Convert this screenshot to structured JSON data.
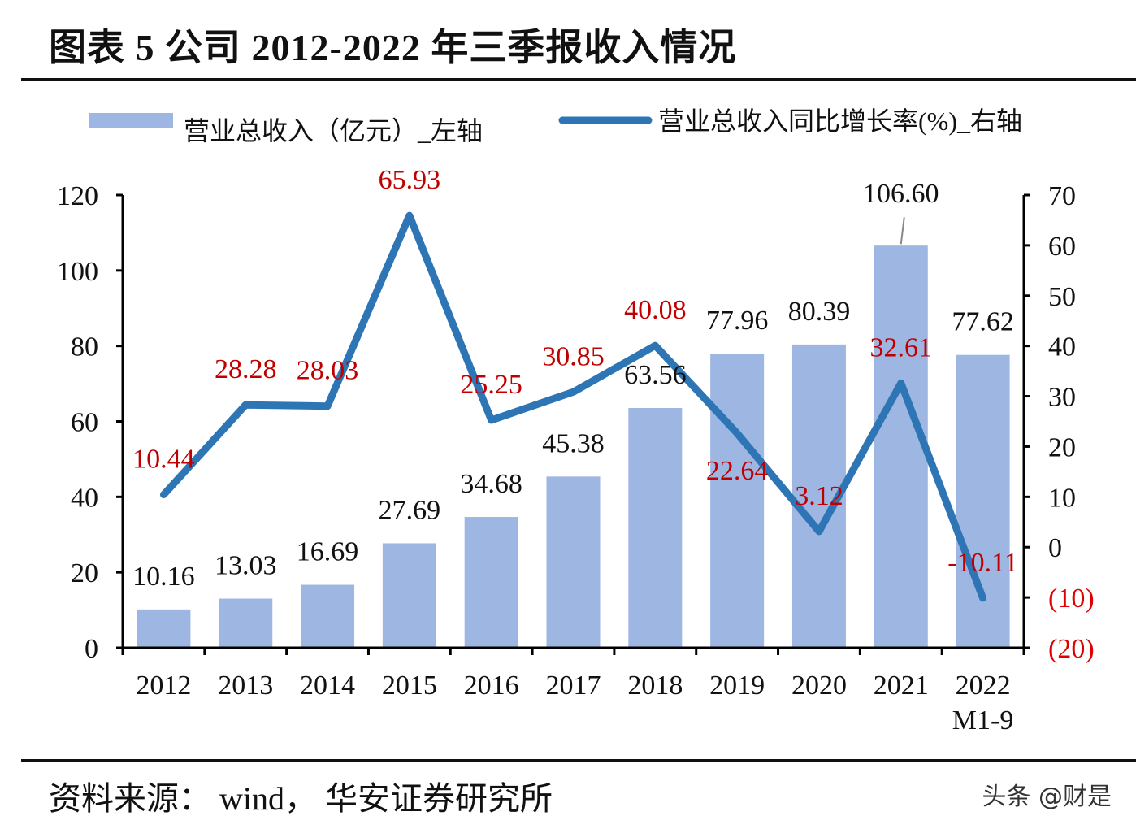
{
  "title": "图表 5 公司 2012-2022 年三季报收入情况",
  "source": "资料来源： wind， 华安证券研究所",
  "watermark": "头条 @财是",
  "chart_data": {
    "type": "bar+line",
    "categories": [
      "2012",
      "2013",
      "2014",
      "2015",
      "2016",
      "2017",
      "2018",
      "2019",
      "2020",
      "2021",
      "2022\nM1-9"
    ],
    "series": [
      {
        "name": "营业总收入（亿元）_左轴",
        "type": "bar",
        "axis": "left",
        "color": "#9DB6E2",
        "values": [
          10.16,
          13.03,
          16.69,
          27.69,
          34.68,
          45.38,
          63.56,
          77.96,
          80.39,
          106.6,
          77.62
        ],
        "labels": [
          "10.16",
          "13.03",
          "16.69",
          "27.69",
          "34.68",
          "45.38",
          "63.56",
          "77.96",
          "80.39",
          "106.60",
          "77.62"
        ]
      },
      {
        "name": "营业总收入同比增长率(%)_右轴",
        "type": "line",
        "axis": "right",
        "color": "#2E75B6",
        "values": [
          10.44,
          28.28,
          28.03,
          65.93,
          25.25,
          30.85,
          40.08,
          22.64,
          3.12,
          32.61,
          -10.11
        ],
        "labels": [
          "10.44",
          "28.28",
          "28.03",
          "65.93",
          "25.25",
          "30.85",
          "40.08",
          "22.64",
          "3.12",
          "32.61",
          "-10.11"
        ],
        "label_color": "#C00000"
      }
    ],
    "left_axis": {
      "ylim": [
        0,
        120
      ],
      "ticks": [
        "0",
        "20",
        "40",
        "60",
        "80",
        "100",
        "120"
      ]
    },
    "right_axis": {
      "ylim": [
        -20,
        70
      ],
      "ticks": [
        "(20)",
        "(10)",
        "0",
        "10",
        "20",
        "30",
        "40",
        "50",
        "60",
        "70"
      ],
      "negative_color": "#E00000"
    },
    "legend": "top",
    "grid": false
  }
}
